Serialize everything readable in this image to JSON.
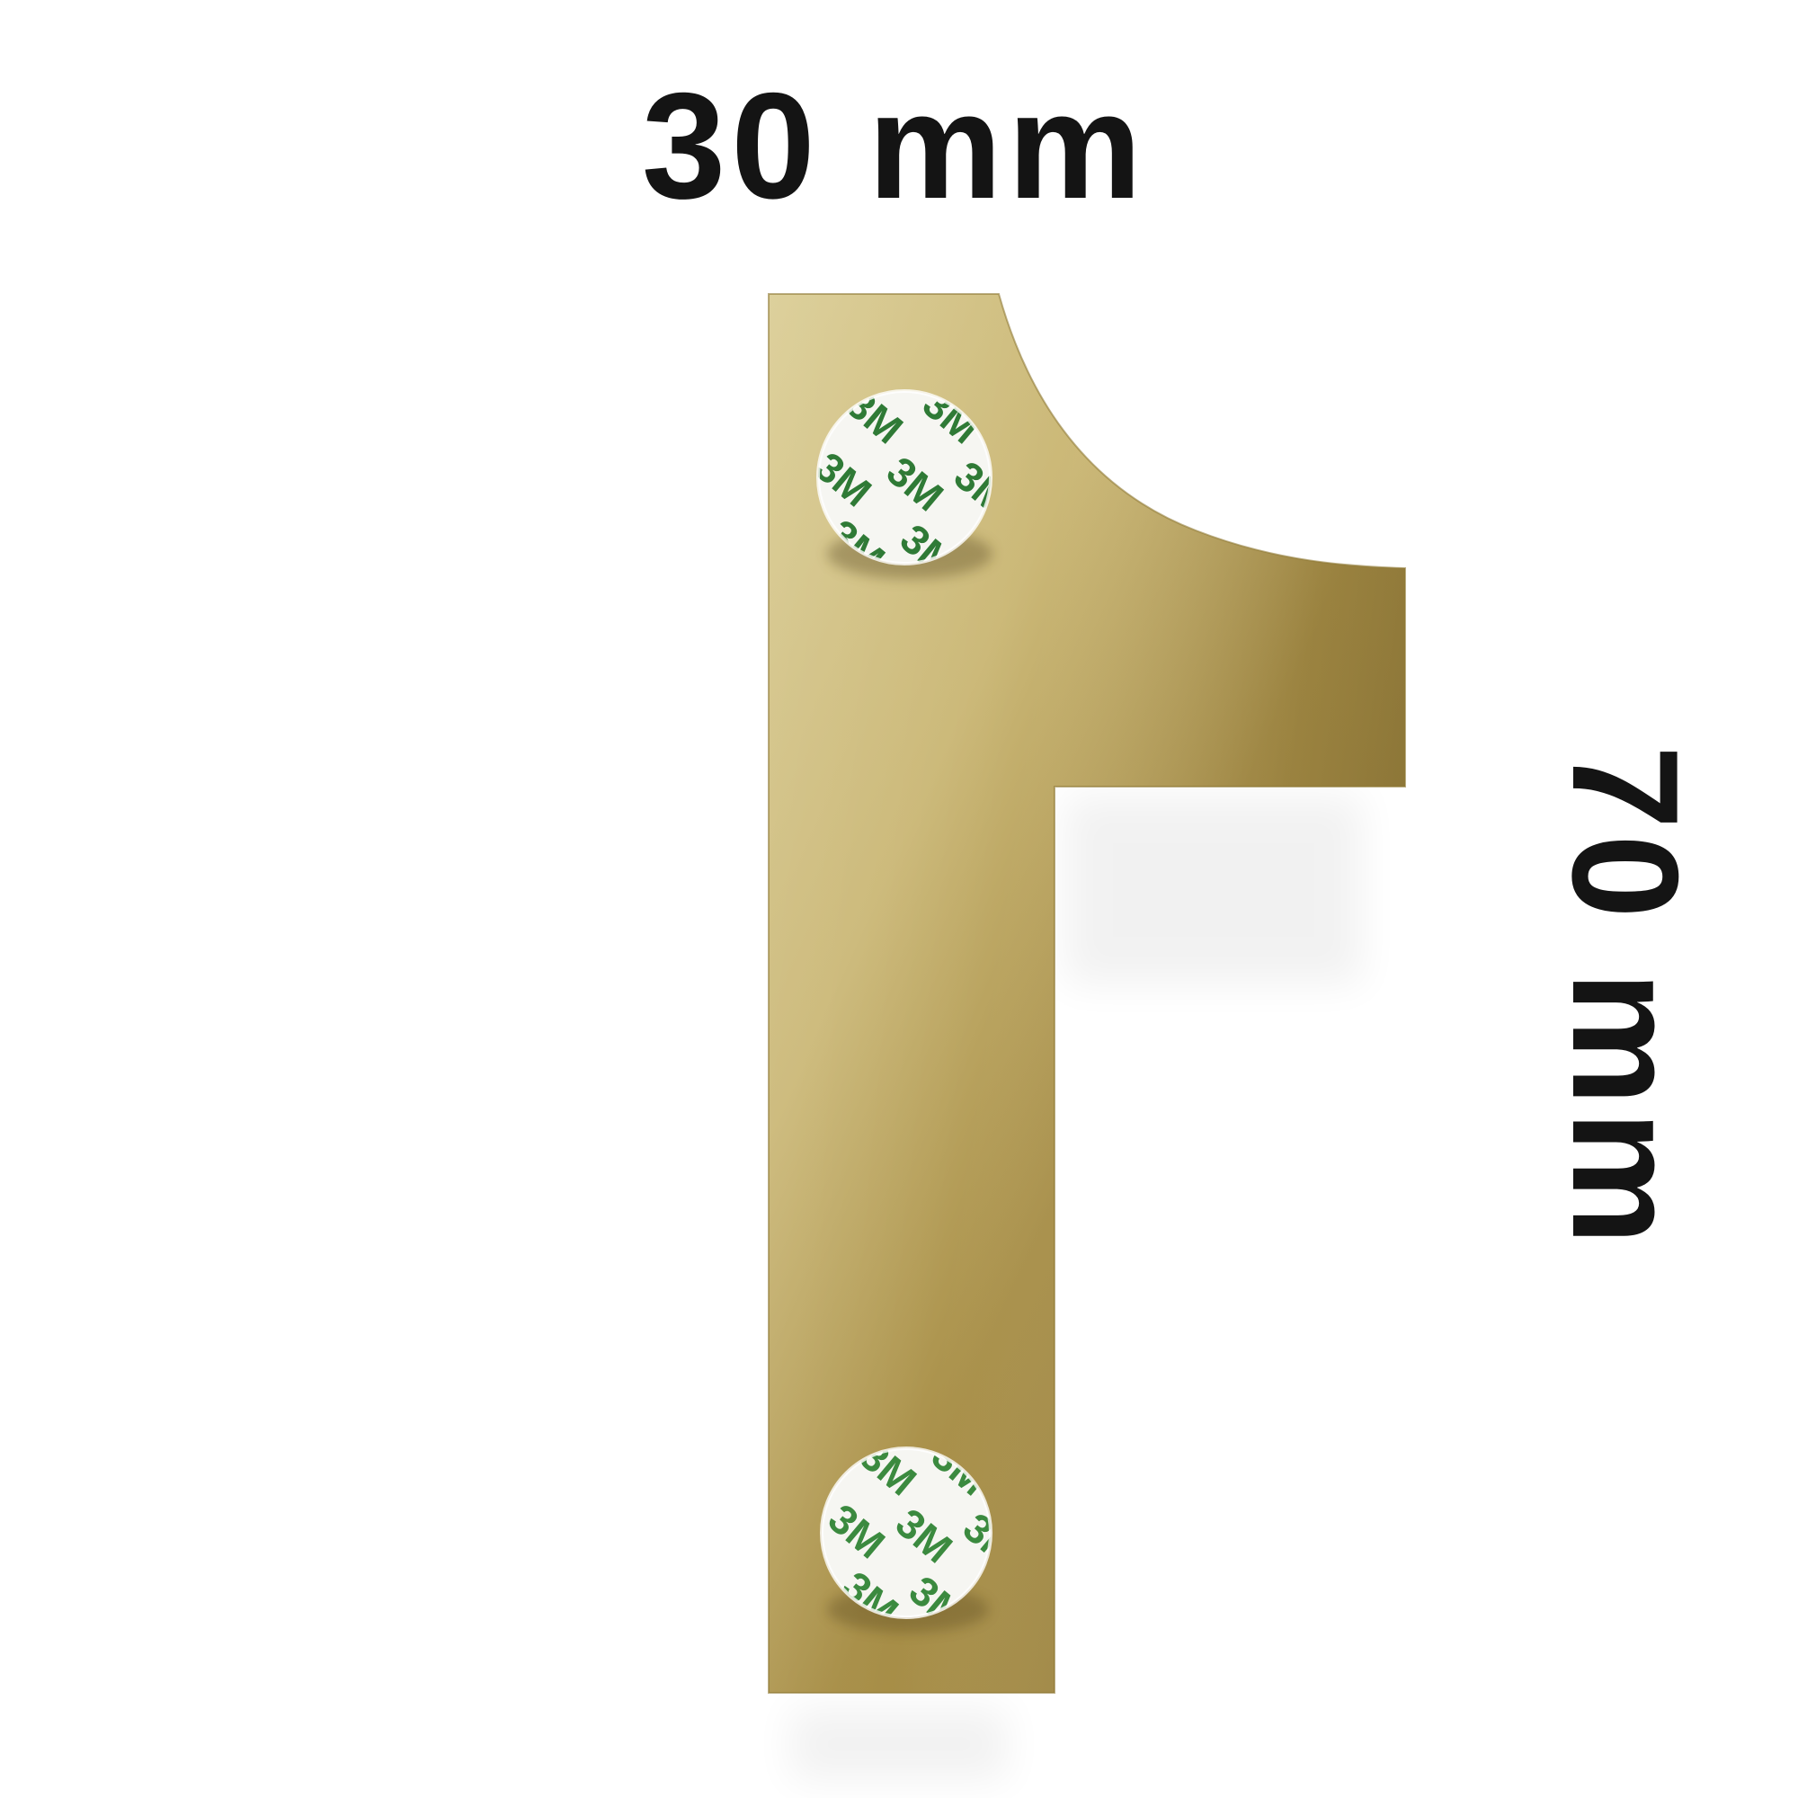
{
  "dimensions": {
    "width_label": "30 mm",
    "height_label": "70 mm"
  },
  "product": {
    "icon": "numeral-one-icon",
    "finish_colors": {
      "light": "#d8c98f",
      "mid": "#b79f5c",
      "dark": "#9c8440",
      "edge": "#8f7935"
    }
  },
  "adhesive_pads": {
    "icon": "adhesive-pad-icon",
    "print_text": "3M",
    "print_color": "#2f7a36"
  }
}
